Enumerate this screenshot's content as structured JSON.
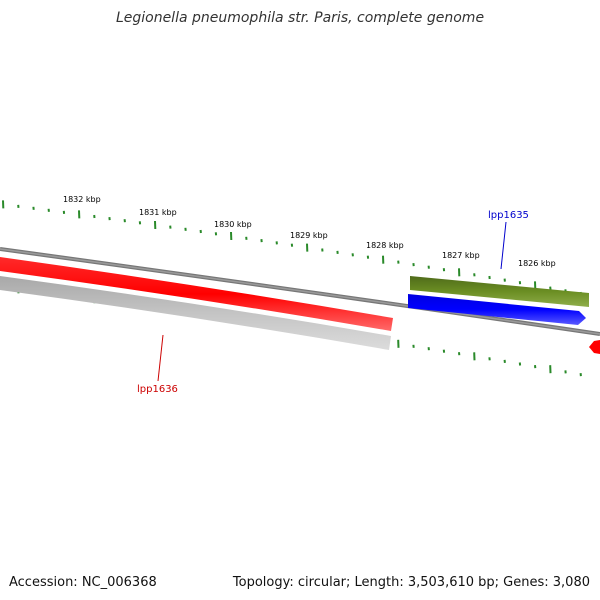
{
  "title": "Legionella pneumophila str. Paris, complete genome",
  "footer": {
    "accession": "Accession: NC_006368",
    "summary": "Topology: circular; Length: 3,503,610 bp; Genes: 3,080"
  },
  "scale": {
    "labels": [
      "1832 kbp",
      "1831 kbp",
      "1830 kbp",
      "1829 kbp",
      "1828 kbp",
      "1827 kbp",
      "1826 kbp"
    ]
  },
  "genes": [
    {
      "name": "lpp1636",
      "strand": "reverse",
      "color": "#ff0000",
      "label_color": "#cc0000"
    },
    {
      "name": "lpp1635",
      "strand": "forward",
      "color": "#0000ff",
      "label_color": "#0000cc"
    }
  ],
  "colors": {
    "tick": "#2a8a2a",
    "backbone": "#808080",
    "cds_forward": "#6b8e23",
    "cds_reverse": "#c0c0c0"
  }
}
